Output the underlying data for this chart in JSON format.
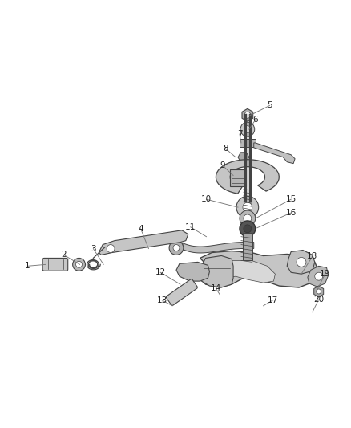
{
  "background_color": "#ffffff",
  "figsize": [
    4.38,
    5.33
  ],
  "dpi": 100,
  "line_color": "#777777",
  "text_color": "#222222",
  "part_fill": "#d0d0d0",
  "part_edge": "#444444",
  "dark_fill": "#888888",
  "label_fs": 7.5
}
